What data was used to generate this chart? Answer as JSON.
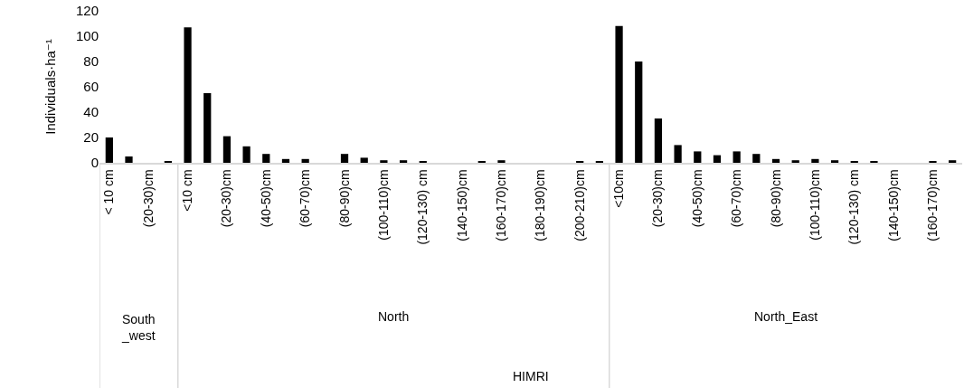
{
  "chart_data": {
    "type": "bar",
    "ylabel": "Individuals·ha⁻¹",
    "categories": [
      "< 10 cm",
      null,
      "(20-30)cm",
      null,
      "<10 cm",
      null,
      "(20-30)cm",
      null,
      "(40-50)cm",
      null,
      "(60-70)cm",
      null,
      "(80-90)cm",
      null,
      "(100-110)cm",
      null,
      "(120-130) cm",
      null,
      "(140-150)cm",
      null,
      "(160-170)cm",
      null,
      "(180-190)cm",
      null,
      "(200-210)cm",
      null,
      "<10cm",
      null,
      "(20-30)cm",
      null,
      "(40-50)cm",
      null,
      "(60-70)cm",
      null,
      "(80-90)cm",
      null,
      "(100-110)cm",
      null,
      "(120-130) cm",
      null,
      "(140-150)cm",
      null,
      "(160-170)cm",
      null
    ],
    "values": [
      20,
      5,
      0,
      1,
      107,
      55,
      21,
      13,
      7,
      3,
      3,
      0,
      7,
      4,
      2,
      2,
      1,
      0,
      0,
      1,
      2,
      0,
      0,
      0,
      1,
      1,
      108,
      80,
      35,
      14,
      9,
      6,
      9,
      7,
      3,
      2,
      3,
      2,
      1,
      1,
      0,
      0,
      1,
      2
    ],
    "color": "#000000",
    "ylim": [
      0,
      120
    ],
    "yticks": [
      0,
      20,
      40,
      60,
      80,
      100,
      120
    ],
    "grid": false,
    "annotations": [
      "South_west",
      "North",
      "North_East",
      "HIMRI"
    ]
  }
}
